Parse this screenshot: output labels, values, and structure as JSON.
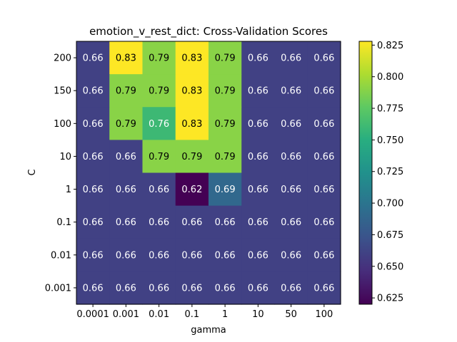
{
  "chart_data": {
    "type": "heatmap",
    "title": "emotion_v_rest_dict: Cross-Validation Scores",
    "xlabel": "gamma",
    "ylabel": "C",
    "x_categories": [
      "0.0001",
      "0.001",
      "0.01",
      "0.1",
      "1",
      "10",
      "50",
      "100"
    ],
    "y_categories": [
      "200",
      "150",
      "100",
      "10",
      "1",
      "0.1",
      "0.01",
      "0.001"
    ],
    "values": [
      [
        0.66,
        0.83,
        0.79,
        0.83,
        0.79,
        0.66,
        0.66,
        0.66
      ],
      [
        0.66,
        0.79,
        0.79,
        0.83,
        0.79,
        0.66,
        0.66,
        0.66
      ],
      [
        0.66,
        0.79,
        0.76,
        0.83,
        0.79,
        0.66,
        0.66,
        0.66
      ],
      [
        0.66,
        0.66,
        0.79,
        0.79,
        0.79,
        0.66,
        0.66,
        0.66
      ],
      [
        0.66,
        0.66,
        0.66,
        0.62,
        0.69,
        0.66,
        0.66,
        0.66
      ],
      [
        0.66,
        0.66,
        0.66,
        0.66,
        0.66,
        0.66,
        0.66,
        0.66
      ],
      [
        0.66,
        0.66,
        0.66,
        0.66,
        0.66,
        0.66,
        0.66,
        0.66
      ],
      [
        0.66,
        0.66,
        0.66,
        0.66,
        0.66,
        0.66,
        0.66,
        0.66
      ]
    ],
    "colormap": "viridis",
    "colorbar": {
      "range": [
        0.62,
        0.828
      ],
      "ticks": [
        "0.625",
        "0.650",
        "0.675",
        "0.700",
        "0.725",
        "0.750",
        "0.775",
        "0.800",
        "0.825"
      ]
    },
    "grid": false,
    "legend": "colorbar-right"
  }
}
